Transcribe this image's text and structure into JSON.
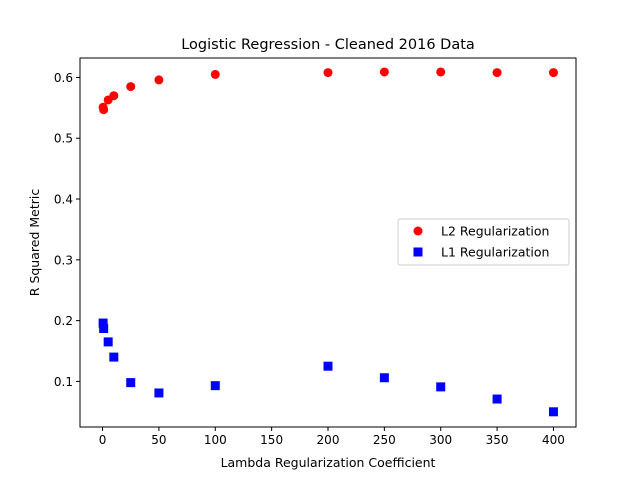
{
  "chart_data": {
    "type": "scatter",
    "title": "Logistic Regression - Cleaned 2016 Data",
    "xlabel": "Lambda Regularization Coefficient",
    "ylabel": "R Squared Metric",
    "xlim": [
      -20,
      420
    ],
    "ylim": [
      0.025,
      0.632
    ],
    "xticks": [
      0,
      50,
      100,
      150,
      200,
      250,
      300,
      350,
      400
    ],
    "yticks": [
      0.1,
      0.2,
      0.3,
      0.4,
      0.5,
      0.6
    ],
    "xtick_labels": [
      "0",
      "50",
      "100",
      "150",
      "200",
      "250",
      "300",
      "350",
      "400"
    ],
    "ytick_labels": [
      "0.1",
      "0.2",
      "0.3",
      "0.4",
      "0.5",
      "0.6"
    ],
    "legend_position": "center-right",
    "series": [
      {
        "name": "L2 Regularization",
        "marker": "circle",
        "color": "#ff0000",
        "x": [
          0.5,
          1,
          5,
          10,
          25,
          50,
          100,
          200,
          250,
          300,
          350,
          400
        ],
        "y": [
          0.551,
          0.547,
          0.563,
          0.57,
          0.585,
          0.596,
          0.605,
          0.608,
          0.609,
          0.609,
          0.608,
          0.608
        ]
      },
      {
        "name": "L1 Regularization",
        "marker": "square",
        "color": "#0000ff",
        "x": [
          0.5,
          1,
          5,
          10,
          25,
          50,
          100,
          200,
          250,
          300,
          350,
          400
        ],
        "y": [
          0.196,
          0.187,
          0.165,
          0.14,
          0.098,
          0.081,
          0.093,
          0.125,
          0.106,
          0.091,
          0.071,
          0.05
        ]
      }
    ]
  }
}
